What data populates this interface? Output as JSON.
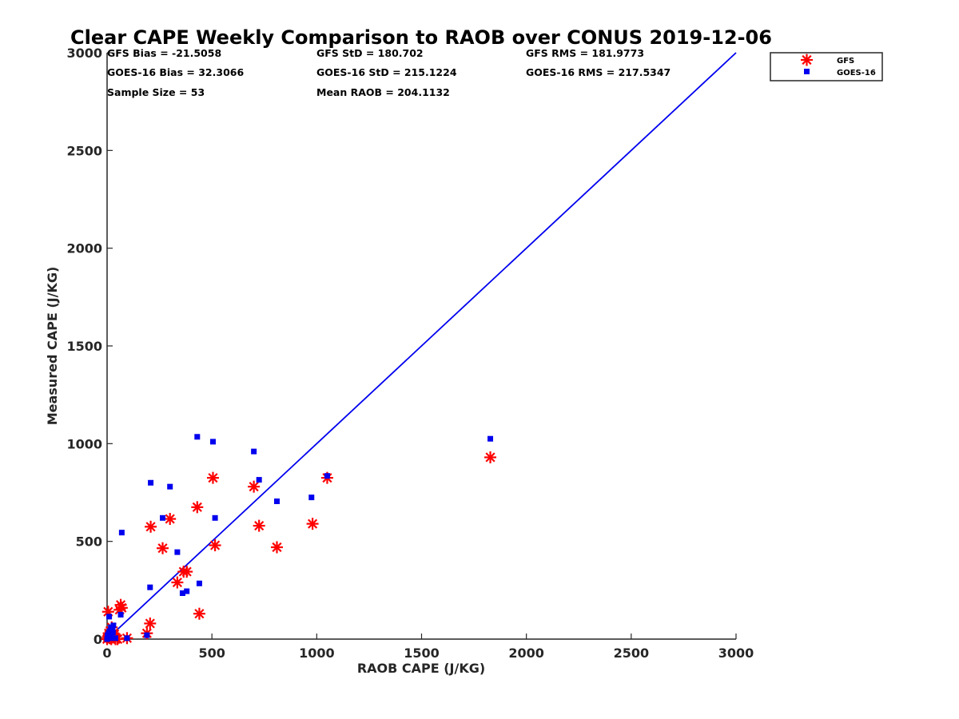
{
  "chart_data": {
    "type": "scatter",
    "title": "Clear CAPE Weekly Comparison to RAOB over CONUS 2019-12-06",
    "xlabel": "RAOB CAPE (J/KG)",
    "ylabel": "Measured CAPE (J/KG)",
    "xlim": [
      0,
      3000
    ],
    "ylim": [
      0,
      3000
    ],
    "xticks": [
      "0",
      "500",
      "1000",
      "1500",
      "2000",
      "2500",
      "3000"
    ],
    "yticks": [
      "0",
      "500",
      "1000",
      "1500",
      "2000",
      "2500",
      "3000"
    ],
    "grid": false,
    "legend_position": "top-right",
    "reference_line": {
      "x": [
        0,
        3000
      ],
      "y": [
        0,
        3000
      ],
      "color": "#0000ee"
    },
    "stats": [
      "GFS Bias = -21.5058",
      "GFS StD = 180.702",
      "GFS RMS = 181.9773",
      "GOES-16 Bias = 32.3066",
      "GOES-16 StD = 215.1224",
      "GOES-16 RMS = 217.5347",
      "Sample Size = 53",
      "Mean RAOB = 204.1132"
    ],
    "series": [
      {
        "name": "GFS",
        "marker": "asterisk",
        "color": "#ff0000",
        "x": [
          0,
          3,
          5,
          8,
          10,
          12,
          15,
          18,
          20,
          22,
          25,
          30,
          35,
          40,
          50,
          60,
          65,
          70,
          95,
          190,
          205,
          208,
          265,
          300,
          335,
          365,
          380,
          430,
          440,
          505,
          515,
          700,
          725,
          810,
          980,
          1050,
          1828
        ],
        "y": [
          0,
          10,
          140,
          30,
          20,
          5,
          15,
          40,
          0,
          60,
          10,
          30,
          25,
          0,
          0,
          150,
          175,
          160,
          5,
          30,
          80,
          575,
          465,
          615,
          290,
          345,
          345,
          675,
          130,
          825,
          480,
          780,
          580,
          470,
          590,
          825,
          930
        ]
      },
      {
        "name": "GOES-16",
        "marker": "square",
        "color": "#0000ee",
        "x": [
          0,
          2,
          5,
          8,
          10,
          12,
          15,
          18,
          20,
          22,
          25,
          28,
          30,
          40,
          65,
          70,
          95,
          190,
          205,
          208,
          265,
          300,
          335,
          360,
          380,
          430,
          440,
          505,
          515,
          700,
          725,
          810,
          975,
          1050,
          1828
        ],
        "y": [
          0,
          20,
          10,
          30,
          115,
          40,
          5,
          60,
          25,
          15,
          50,
          35,
          70,
          5,
          125,
          545,
          5,
          20,
          265,
          800,
          620,
          780,
          445,
          235,
          245,
          1035,
          285,
          1010,
          620,
          960,
          815,
          705,
          725,
          835,
          1025
        ]
      }
    ]
  }
}
